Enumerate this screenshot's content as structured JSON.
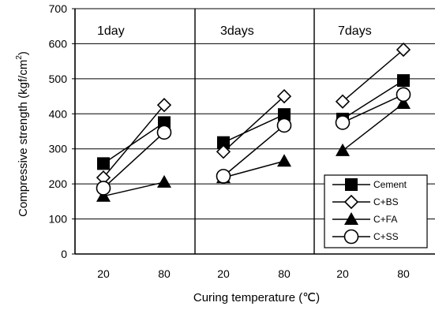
{
  "chart_data": {
    "type": "line",
    "xlabel": "Curing temperature (℃)",
    "ylabel_main": "Compressive strength (kgf/cm",
    "ylabel_sup": "2",
    "ylabel_close": ")",
    "ylim": [
      0,
      700
    ],
    "y_ticks": [
      0,
      100,
      200,
      300,
      400,
      500,
      600,
      700
    ],
    "categories": [
      "20",
      "80"
    ],
    "grid": true,
    "legend_placement": "bottom-right",
    "panels": [
      {
        "label": "1day",
        "series": [
          {
            "name": "Cement",
            "values": [
              258,
              375
            ]
          },
          {
            "name": "C+BS",
            "values": [
              218,
              425
            ]
          },
          {
            "name": "C+FA",
            "values": [
              165,
              205
            ]
          },
          {
            "name": "C+SS",
            "values": [
              188,
              347
            ]
          }
        ]
      },
      {
        "label": "3days",
        "series": [
          {
            "name": "Cement",
            "values": [
              318,
              398
            ]
          },
          {
            "name": "C+BS",
            "values": [
              292,
              450
            ]
          },
          {
            "name": "C+FA",
            "values": [
              218,
              265
            ]
          },
          {
            "name": "C+SS",
            "values": [
              222,
              367
            ]
          }
        ]
      },
      {
        "label": "7days",
        "series": [
          {
            "name": "Cement",
            "values": [
              385,
              495
            ]
          },
          {
            "name": "C+BS",
            "values": [
              435,
              583
            ]
          },
          {
            "name": "C+FA",
            "values": [
              295,
              430
            ]
          },
          {
            "name": "C+SS",
            "values": [
              375,
              455
            ]
          }
        ]
      }
    ],
    "series_styles": [
      {
        "name": "Cement",
        "marker": "square-filled"
      },
      {
        "name": "C+BS",
        "marker": "diamond-open"
      },
      {
        "name": "C+FA",
        "marker": "triangle-filled"
      },
      {
        "name": "C+SS",
        "marker": "circle-open"
      }
    ],
    "colors": {
      "line": "#000000",
      "background": "#ffffff",
      "open_fill": "#ffffff"
    }
  }
}
